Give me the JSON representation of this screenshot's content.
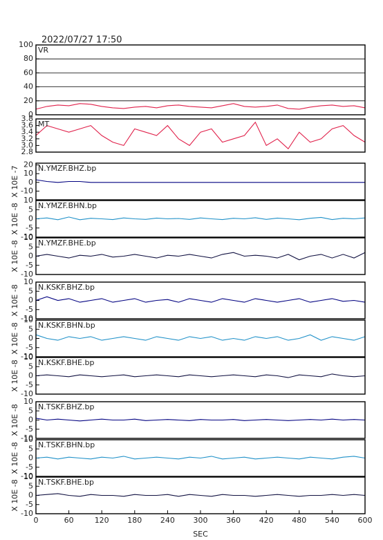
{
  "chart_data": [
    {
      "type": "line",
      "title": "VR",
      "xlim": [
        0,
        600
      ],
      "ylim": [
        0,
        100
      ],
      "yticks": [
        0,
        20,
        40,
        60,
        80,
        100
      ],
      "grid": true,
      "x": [
        0,
        20,
        40,
        60,
        80,
        100,
        120,
        140,
        160,
        180,
        200,
        220,
        240,
        260,
        280,
        300,
        320,
        340,
        360,
        380,
        400,
        420,
        440,
        460,
        480,
        500,
        520,
        540,
        560,
        580,
        600
      ],
      "series": [
        {
          "color": "#e0204a",
          "values": [
            8,
            12,
            14,
            13,
            16,
            15,
            12,
            10,
            9,
            11,
            12,
            10,
            13,
            14,
            12,
            11,
            10,
            13,
            16,
            12,
            11,
            12,
            14,
            9,
            8,
            11,
            13,
            14,
            12,
            13,
            10
          ]
        }
      ]
    },
    {
      "type": "line",
      "title": "MT",
      "xlim": [
        0,
        600
      ],
      "ylim": [
        2.8,
        3.8
      ],
      "yticks": [
        2.8,
        {
          "value": 3,
          "label": "3.0"
        },
        3.2,
        3.4,
        3.6,
        3.8
      ],
      "x": [
        0,
        20,
        40,
        60,
        80,
        100,
        120,
        140,
        160,
        180,
        200,
        220,
        240,
        260,
        280,
        300,
        320,
        340,
        360,
        380,
        400,
        420,
        440,
        460,
        480,
        500,
        520,
        540,
        560,
        580,
        600
      ],
      "series": [
        {
          "color": "#e0204a",
          "values": [
            3.3,
            3.6,
            3.5,
            3.4,
            3.5,
            3.6,
            3.3,
            3.1,
            3.0,
            3.5,
            3.4,
            3.3,
            3.6,
            3.2,
            3.0,
            3.4,
            3.5,
            3.1,
            3.2,
            3.3,
            3.7,
            3.0,
            3.2,
            2.9,
            3.4,
            3.1,
            3.2,
            3.5,
            3.6,
            3.3,
            3.1
          ]
        }
      ]
    },
    {
      "type": "line",
      "title": "N.YMZF.BHZ.bp",
      "ylabel": "X 10E -7",
      "xlim": [
        0,
        600
      ],
      "ylim": [
        -20,
        22
      ],
      "yticks": [
        -10,
        0,
        10,
        20
      ],
      "x": [
        0,
        20,
        40,
        60,
        80,
        100,
        120,
        140,
        160,
        180,
        200,
        220,
        240,
        260,
        280,
        300,
        320,
        340,
        360,
        380,
        400,
        420,
        440,
        460,
        480,
        500,
        520,
        540,
        560,
        580,
        600
      ],
      "series": [
        {
          "color": "#000080",
          "values": [
            3,
            1,
            0,
            1,
            1,
            0,
            0,
            0,
            0,
            0,
            0,
            0,
            0,
            0,
            0,
            0,
            0,
            0,
            0,
            0,
            0,
            0,
            0,
            0,
            0,
            0,
            0,
            0,
            0,
            0,
            0
          ]
        }
      ]
    },
    {
      "type": "line",
      "title": "N.YMZF.BHN.bp",
      "ylabel": "X 10E -8",
      "xlim": [
        0,
        600
      ],
      "ylim": [
        -10,
        10
      ],
      "yticks": [
        -10,
        -5,
        0,
        5,
        10
      ],
      "x": [
        0,
        20,
        40,
        60,
        80,
        100,
        120,
        140,
        160,
        180,
        200,
        220,
        240,
        260,
        280,
        300,
        320,
        340,
        360,
        380,
        400,
        420,
        440,
        460,
        480,
        500,
        520,
        540,
        560,
        580,
        600
      ],
      "series": [
        {
          "color": "#1e90c8",
          "values": [
            0,
            0.5,
            -0.5,
            1,
            -0.5,
            0.3,
            0,
            -0.4,
            0.5,
            0,
            -0.3,
            0.4,
            0,
            0.2,
            -0.3,
            0.5,
            0,
            -0.4,
            0.3,
            0,
            0.6,
            -0.3,
            0.4,
            0,
            -0.5,
            0.3,
            0.8,
            -0.4,
            0.3,
            0,
            0.5
          ]
        }
      ]
    },
    {
      "type": "line",
      "title": "N.YMZF.BHE.bp",
      "ylabel": "X 10E -8",
      "xlim": [
        0,
        600
      ],
      "ylim": [
        -10,
        10
      ],
      "yticks": [
        -10,
        -5,
        0,
        5,
        10
      ],
      "x": [
        0,
        20,
        40,
        60,
        80,
        100,
        120,
        140,
        160,
        180,
        200,
        220,
        240,
        260,
        280,
        300,
        320,
        340,
        360,
        380,
        400,
        420,
        440,
        460,
        480,
        500,
        520,
        540,
        560,
        580,
        600
      ],
      "series": [
        {
          "color": "#101040",
          "values": [
            0,
            1,
            0,
            -1,
            0.5,
            0,
            1,
            -0.5,
            0,
            1,
            0,
            -1,
            0.5,
            0,
            1,
            0,
            -1,
            1,
            2,
            0,
            0.5,
            0,
            -1,
            1,
            -2,
            0,
            1,
            -1,
            1,
            -1,
            2
          ]
        }
      ]
    },
    {
      "type": "line",
      "title": "N.KSKF.BHZ.bp",
      "ylabel": "X 10E -8",
      "xlim": [
        0,
        600
      ],
      "ylim": [
        -10,
        10
      ],
      "yticks": [
        -10,
        -5,
        0,
        5,
        10
      ],
      "x": [
        0,
        20,
        40,
        60,
        80,
        100,
        120,
        140,
        160,
        180,
        200,
        220,
        240,
        260,
        280,
        300,
        320,
        340,
        360,
        380,
        400,
        420,
        440,
        460,
        480,
        500,
        520,
        540,
        560,
        580,
        600
      ],
      "series": [
        {
          "color": "#000080",
          "values": [
            0,
            2,
            0,
            1,
            -1,
            0,
            1,
            -1,
            0,
            1,
            -1,
            0,
            0.5,
            -1,
            1,
            0,
            -1,
            1,
            0,
            -1,
            1,
            0,
            -1,
            0,
            1,
            -1,
            0,
            1,
            -0.5,
            0,
            -1
          ]
        }
      ]
    },
    {
      "type": "line",
      "title": "N.KSKF.BHN.bp",
      "ylabel": "X 10E -8",
      "xlim": [
        0,
        600
      ],
      "ylim": [
        -10,
        10
      ],
      "yticks": [
        -10,
        -5,
        0,
        5,
        10
      ],
      "x": [
        0,
        20,
        40,
        60,
        80,
        100,
        120,
        140,
        160,
        180,
        200,
        220,
        240,
        260,
        280,
        300,
        320,
        340,
        360,
        380,
        400,
        420,
        440,
        460,
        480,
        500,
        520,
        540,
        560,
        580,
        600
      ],
      "series": [
        {
          "color": "#1e90c8",
          "values": [
            2,
            0,
            -1,
            1,
            0,
            1,
            -1,
            0,
            1,
            0,
            -1,
            1,
            0,
            -1,
            1,
            0,
            1,
            -1,
            0,
            -1,
            1,
            0,
            1,
            -1,
            0,
            2,
            -1,
            1,
            0,
            -1,
            1
          ]
        }
      ]
    },
    {
      "type": "line",
      "title": "N.KSKF.BHE.bp",
      "ylabel": "X 10E -8",
      "xlim": [
        0,
        600
      ],
      "ylim": [
        -10,
        10
      ],
      "yticks": [
        -10,
        -5,
        0,
        5,
        10
      ],
      "x": [
        0,
        20,
        40,
        60,
        80,
        100,
        120,
        140,
        160,
        180,
        200,
        220,
        240,
        260,
        280,
        300,
        320,
        340,
        360,
        380,
        400,
        420,
        440,
        460,
        480,
        500,
        520,
        540,
        560,
        580,
        600
      ],
      "series": [
        {
          "color": "#101040",
          "values": [
            0,
            0.5,
            0,
            -0.5,
            0.5,
            0,
            -0.5,
            0,
            0.5,
            -0.5,
            0,
            0.5,
            0,
            -0.5,
            0.5,
            0,
            -0.5,
            0,
            0.5,
            0,
            -0.5,
            0.5,
            0,
            -1,
            0.5,
            0,
            -0.5,
            1,
            0,
            -0.5,
            0
          ]
        }
      ]
    },
    {
      "type": "line",
      "title": "N.TSKF.BHZ.bp",
      "ylabel": "X 10E -8",
      "xlim": [
        0,
        600
      ],
      "ylim": [
        -10,
        10
      ],
      "yticks": [
        -10,
        -5,
        0,
        5,
        10
      ],
      "x": [
        0,
        20,
        40,
        60,
        80,
        100,
        120,
        140,
        160,
        180,
        200,
        220,
        240,
        260,
        280,
        300,
        320,
        340,
        360,
        380,
        400,
        420,
        440,
        460,
        480,
        500,
        520,
        540,
        560,
        580,
        600
      ],
      "series": [
        {
          "color": "#000080",
          "values": [
            1,
            0,
            0.5,
            0,
            -0.5,
            0,
            0.5,
            0,
            0,
            0.5,
            -0.3,
            0,
            0.3,
            0,
            -0.3,
            0.3,
            0,
            0,
            0.3,
            -0.3,
            0,
            0.3,
            0,
            -0.3,
            0,
            0.3,
            0,
            0.5,
            0,
            0.3,
            0
          ]
        }
      ]
    },
    {
      "type": "line",
      "title": "N.TSKF.BHN.bp",
      "ylabel": "X 10E -8",
      "xlim": [
        0,
        600
      ],
      "ylim": [
        -10,
        10
      ],
      "yticks": [
        -10,
        -5,
        0,
        5,
        10
      ],
      "x": [
        0,
        20,
        40,
        60,
        80,
        100,
        120,
        140,
        160,
        180,
        200,
        220,
        240,
        260,
        280,
        300,
        320,
        340,
        360,
        380,
        400,
        420,
        440,
        460,
        480,
        500,
        520,
        540,
        560,
        580,
        600
      ],
      "series": [
        {
          "color": "#1e90c8",
          "values": [
            0,
            0.5,
            -0.5,
            0.5,
            0,
            -0.5,
            0.5,
            0,
            1,
            -0.5,
            0,
            0.5,
            0,
            -0.5,
            0.5,
            0,
            1,
            -0.5,
            0,
            0.5,
            -0.5,
            0,
            0.5,
            0,
            -0.5,
            0.5,
            0,
            -0.5,
            0.5,
            1,
            0
          ]
        }
      ]
    },
    {
      "type": "line",
      "title": "N.TSKF.BHE.bp",
      "ylabel": "X 10E -8",
      "xlabel": "SEC",
      "xlim": [
        0,
        600
      ],
      "ylim": [
        -10,
        10
      ],
      "yticks": [
        -10,
        -5,
        0,
        5,
        10
      ],
      "xticks": [
        0,
        60,
        120,
        180,
        240,
        300,
        360,
        420,
        480,
        540,
        600
      ],
      "x": [
        0,
        20,
        40,
        60,
        80,
        100,
        120,
        140,
        160,
        180,
        200,
        220,
        240,
        260,
        280,
        300,
        320,
        340,
        360,
        380,
        400,
        420,
        440,
        460,
        480,
        500,
        520,
        540,
        560,
        580,
        600
      ],
      "series": [
        {
          "color": "#101040",
          "values": [
            0,
            0.5,
            1,
            0,
            -0.5,
            0.5,
            0,
            0,
            -0.5,
            0.5,
            0,
            0,
            0.5,
            -0.5,
            0.5,
            0,
            -0.5,
            0.5,
            0,
            0,
            -0.5,
            0,
            0.5,
            0,
            -0.5,
            0,
            0,
            0.5,
            0,
            0.5,
            0
          ]
        }
      ]
    }
  ],
  "header": {
    "timestamp": "2022/07/27  17:50"
  }
}
